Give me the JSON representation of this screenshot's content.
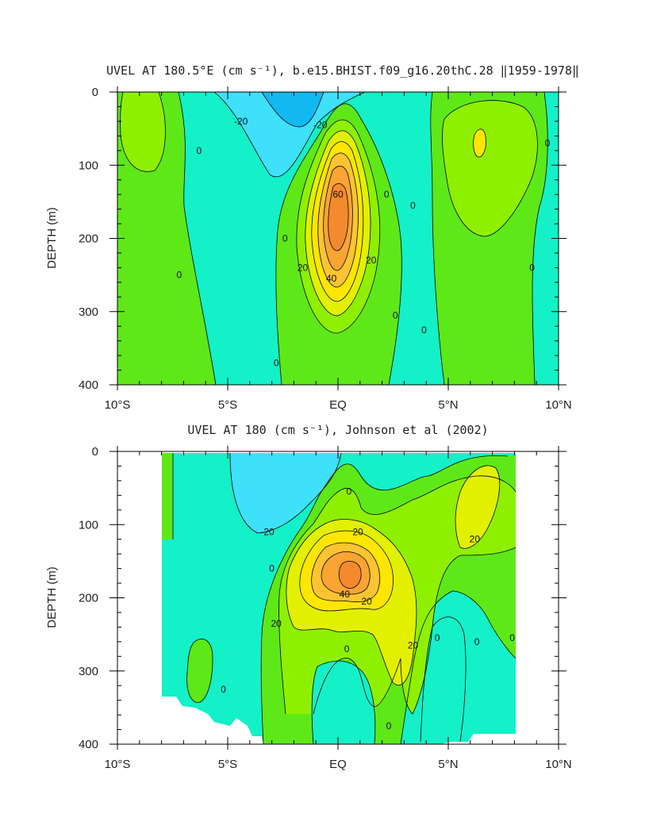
{
  "chart_data": [
    {
      "type": "heatmap",
      "title": "UVEL AT 180.5°E (cm s⁻¹), b.e15.BHIST.f09_g16.20thC.28 ‖1959-1978‖",
      "xlabel": "",
      "ylabel": "DEPTH (m)",
      "xlim": [
        -10,
        10
      ],
      "ylim": [
        400,
        0
      ],
      "x_ticks": [
        -10,
        -5,
        0,
        5,
        10
      ],
      "x_tick_labels": [
        "10°S",
        "5°S",
        "EQ",
        "5°N",
        "10°N"
      ],
      "y_ticks": [
        0,
        100,
        200,
        300,
        400
      ],
      "y_tick_labels": [
        "0",
        "100",
        "200",
        "300",
        "400"
      ],
      "contour_interval": 10,
      "level_colors": [
        {
          "min": -30,
          "max": -20,
          "color": "#12b8f0"
        },
        {
          "min": -20,
          "max": -10,
          "color": "#3ee0fa"
        },
        {
          "min": -10,
          "max": 0,
          "color": "#14f0c8"
        },
        {
          "min": 0,
          "max": 10,
          "color": "#5ee818"
        },
        {
          "min": 10,
          "max": 20,
          "color": "#8ef000"
        },
        {
          "min": 20,
          "max": 30,
          "color": "#e2f000"
        },
        {
          "min": 30,
          "max": 40,
          "color": "#ffe600"
        },
        {
          "min": 40,
          "max": 50,
          "color": "#fcc431"
        },
        {
          "min": 50,
          "max": 60,
          "color": "#f9a433"
        },
        {
          "min": 60,
          "max": 70,
          "color": "#f48a2e"
        }
      ],
      "features": [
        {
          "kind": "core",
          "lat": 0,
          "depth": 175,
          "value": 62
        },
        {
          "kind": "westward",
          "lat": -2.8,
          "depth": 0,
          "value": -28
        },
        {
          "kind": "eastward",
          "lat": -9,
          "depth": 60,
          "value": 6
        },
        {
          "kind": "eastward",
          "lat": 6.3,
          "depth": 70,
          "value": 12
        }
      ],
      "contour_labels": [
        {
          "text": "-20",
          "lat": -4.4,
          "depth": 40
        },
        {
          "text": "-20",
          "lat": -0.8,
          "depth": 45
        },
        {
          "text": "0",
          "lat": -6.3,
          "depth": 80
        },
        {
          "text": "0",
          "lat": -7.2,
          "depth": 250
        },
        {
          "text": "0",
          "lat": -2.4,
          "depth": 200
        },
        {
          "text": "0",
          "lat": -2.8,
          "depth": 370
        },
        {
          "text": "0",
          "lat": 2.2,
          "depth": 140
        },
        {
          "text": "0",
          "lat": 3.4,
          "depth": 155
        },
        {
          "text": "0",
          "lat": 2.6,
          "depth": 305
        },
        {
          "text": "0",
          "lat": 3.9,
          "depth": 325
        },
        {
          "text": "0",
          "lat": 8.8,
          "depth": 240
        },
        {
          "text": "0",
          "lat": 9.5,
          "depth": 70
        },
        {
          "text": "60",
          "lat": 0,
          "depth": 140
        },
        {
          "text": "40",
          "lat": -0.3,
          "depth": 255
        },
        {
          "text": "20",
          "lat": -1.6,
          "depth": 240
        },
        {
          "text": "20",
          "lat": 1.5,
          "depth": 230
        }
      ]
    },
    {
      "type": "heatmap",
      "title": "UVEL AT 180 (cm s⁻¹), Johnson et al (2002)",
      "xlabel": "",
      "ylabel": "DEPTH (m)",
      "xlim": [
        -10,
        10
      ],
      "ylim": [
        400,
        0
      ],
      "x_ticks": [
        -10,
        -5,
        0,
        5,
        10
      ],
      "x_tick_labels": [
        "10°S",
        "5°S",
        "EQ",
        "5°N",
        "10°N"
      ],
      "y_ticks": [
        0,
        100,
        200,
        300,
        400
      ],
      "y_tick_labels": [
        "0",
        "100",
        "200",
        "300",
        "400"
      ],
      "data_extent_lat": [
        -8,
        8
      ],
      "contour_interval": 10,
      "level_colors": [
        {
          "min": -30,
          "max": -20,
          "color": "#3ee0fa"
        },
        {
          "min": -20,
          "max": -10,
          "color": "#14f0c8"
        },
        {
          "min": -10,
          "max": 0,
          "color": "#5ee818"
        },
        {
          "min": 0,
          "max": 10,
          "color": "#8ef000"
        },
        {
          "min": 10,
          "max": 20,
          "color": "#e2f000"
        },
        {
          "min": 20,
          "max": 30,
          "color": "#ffe600"
        },
        {
          "min": 30,
          "max": 40,
          "color": "#fcc431"
        },
        {
          "min": 40,
          "max": 50,
          "color": "#f9a433"
        },
        {
          "min": 50,
          "max": 60,
          "color": "#f48a2e"
        }
      ],
      "features": [
        {
          "kind": "core",
          "lat": 0.4,
          "depth": 170,
          "value": 55
        },
        {
          "kind": "westward",
          "lat": -2.8,
          "depth": 40,
          "value": -28
        },
        {
          "kind": "eastward",
          "lat": 6.5,
          "depth": 80,
          "value": 22
        }
      ],
      "contour_labels": [
        {
          "text": "-20",
          "lat": -3.2,
          "depth": 110
        },
        {
          "text": "0",
          "lat": 0.5,
          "depth": 55
        },
        {
          "text": "0",
          "lat": -3.0,
          "depth": 160
        },
        {
          "text": "0",
          "lat": -5.2,
          "depth": 325
        },
        {
          "text": "0",
          "lat": 0.4,
          "depth": 270
        },
        {
          "text": "0",
          "lat": 2.3,
          "depth": 375
        },
        {
          "text": "0",
          "lat": 4.5,
          "depth": 255
        },
        {
          "text": "0",
          "lat": 6.3,
          "depth": 260
        },
        {
          "text": "0",
          "lat": 7.9,
          "depth": 255
        },
        {
          "text": "20",
          "lat": 0.9,
          "depth": 110
        },
        {
          "text": "20",
          "lat": -2.8,
          "depth": 235
        },
        {
          "text": "20",
          "lat": 1.3,
          "depth": 205
        },
        {
          "text": "20",
          "lat": 3.4,
          "depth": 265
        },
        {
          "text": "20",
          "lat": 6.2,
          "depth": 120
        },
        {
          "text": "40",
          "lat": 0.3,
          "depth": 195
        }
      ]
    }
  ]
}
